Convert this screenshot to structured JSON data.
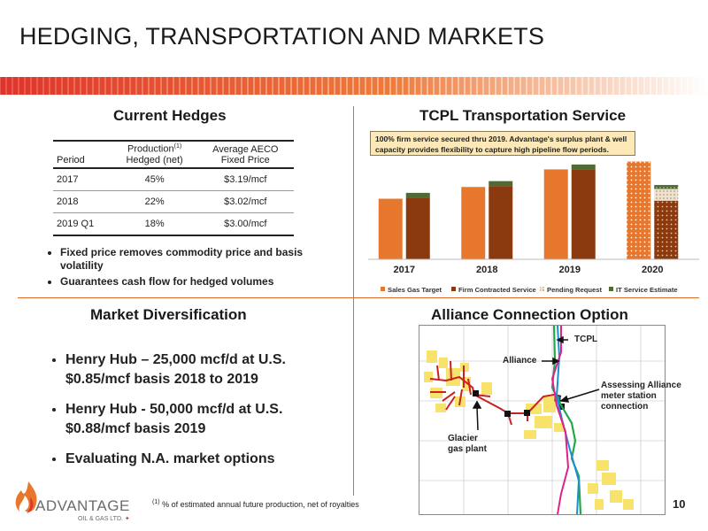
{
  "slide": {
    "title": "HEDGING, TRANSPORTATION AND MARKETS",
    "page_number": "10",
    "footnote_marker": "(1)",
    "footnote_text": "% of estimated annual future production, net of royalties"
  },
  "brand": {
    "name": "ADVANTAGE",
    "sub": "OIL & GAS LTD.",
    "colors": {
      "orange": "#e8772e",
      "red": "#d93a2b",
      "green": "#4f6b34",
      "grey": "#6b6b6b"
    }
  },
  "current_hedges": {
    "heading": "Current Hedges",
    "headers": {
      "period": "Period",
      "production": "Production",
      "production_sup": "(1)",
      "production_2": "Hedged (net)",
      "price": "Average AECO",
      "price_2": "Fixed Price"
    },
    "rows": [
      {
        "period": "2017",
        "hedged": "45%",
        "price": "$3.19/mcf"
      },
      {
        "period": "2018",
        "hedged": "22%",
        "price": "$3.02/mcf"
      },
      {
        "period": "2019 Q1",
        "hedged": "18%",
        "price": "$3.00/mcf"
      }
    ],
    "bullets": [
      "Fixed price removes commodity price and basis volatility",
      "Guarantees cash flow for hedged volumes"
    ]
  },
  "market_diversification": {
    "heading": "Market Diversification",
    "bullets": [
      "Henry Hub – 25,000 mcf/d at U.S. $0.85/mcf basis 2018 to 2019",
      "Henry Hub -  50,000 mcf/d at U.S. $0.88/mcf basis 2019",
      "Evaluating N.A. market options"
    ]
  },
  "tcpl": {
    "heading": "TCPL Transportation Service",
    "callout": "100% firm service secured thru 2019. Advantage's surplus plant & well capacity provides flexibility to capture high pipeline flow periods."
  },
  "chart_data": {
    "type": "bar",
    "categories": [
      "2017",
      "2018",
      "2019",
      "2020"
    ],
    "series": [
      {
        "name": "Sales Gas Target",
        "color": "#e8772e",
        "pattern": "solid",
        "values": [
          62,
          74,
          92,
          100
        ]
      },
      {
        "name": "Firm Contracted Service",
        "color": "#8b3a10",
        "pattern": "solid",
        "values": [
          63,
          75,
          92,
          60
        ]
      },
      {
        "name": "Pending Request",
        "color": "#d9c3a5",
        "pattern": "dotted",
        "values": [
          0,
          0,
          0,
          12
        ]
      },
      {
        "name": "IT Service Estimate",
        "color": "#4f6b34",
        "pattern": "solid",
        "values": [
          5,
          5,
          5,
          4
        ]
      }
    ],
    "pattern_years": {
      "Sales Gas Target": [
        "2020"
      ],
      "Firm Contracted Service": [
        "2020"
      ]
    },
    "ylim": [
      0,
      115
    ],
    "legend": "bottom",
    "grid": false,
    "title": "",
    "xlabel": "",
    "ylabel": ""
  },
  "alliance": {
    "heading": "Alliance Connection Option",
    "labels": {
      "tcpl": "TCPL",
      "alliance": "Alliance",
      "assessing_1": "Assessing Alliance",
      "assessing_2": "meter station",
      "assessing_3": "connection",
      "glacier_1": "Glacier",
      "glacier_2": "gas plant"
    },
    "line_colors": {
      "tcpl_green": "#22a84a",
      "tcpl_blue": "#1d8ed0",
      "alliance_pink": "#e0218a",
      "gathering_red": "#cc1f1f",
      "land_yellow": "#f7e36b"
    }
  }
}
